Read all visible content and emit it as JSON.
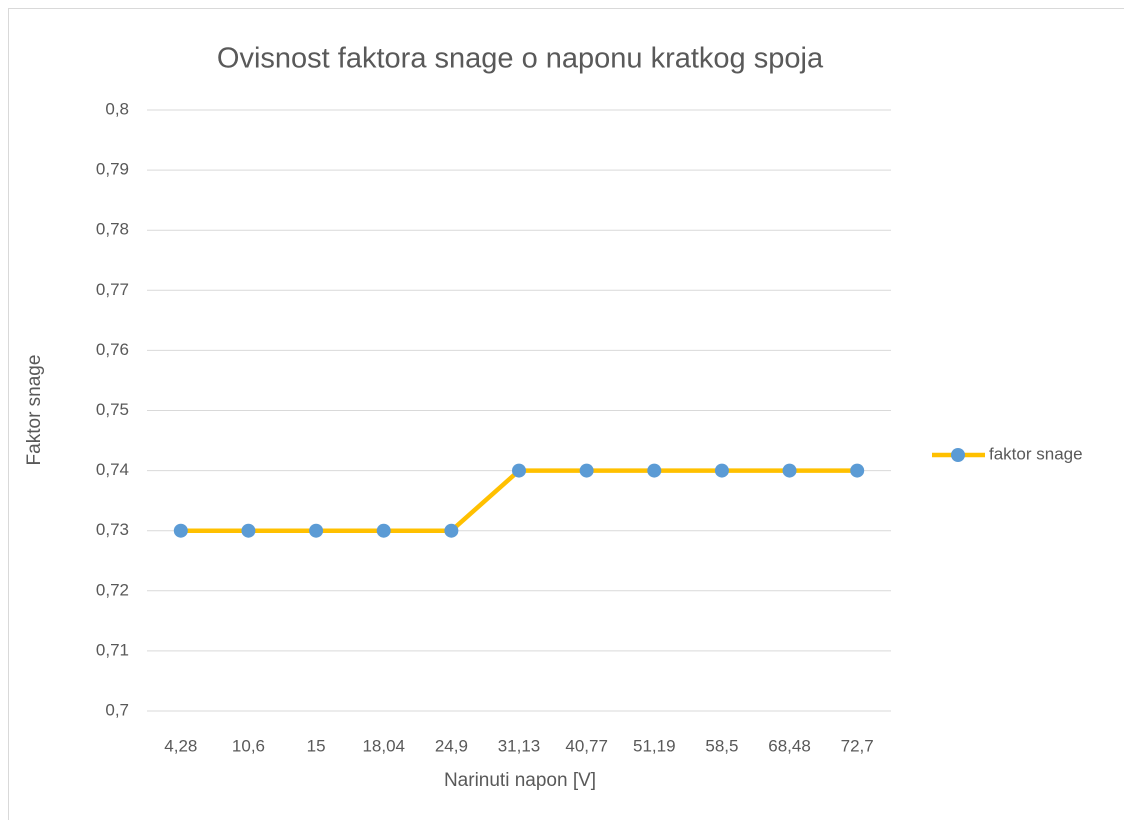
{
  "chart_data": {
    "type": "line",
    "title": "Ovisnost faktora snage o naponu kratkog spoja",
    "x_label": "Narinuti napon [V]",
    "y_label": "Faktor snage",
    "categories": [
      "4,28",
      "10,6",
      "15",
      "18,04",
      "24,9",
      "31,13",
      "40,77",
      "51,19",
      "58,5",
      "68,48",
      "72,7"
    ],
    "series": [
      {
        "name": "faktor snage",
        "color": "#FFC000",
        "marker_color": "#5B9BD5",
        "values": [
          0.73,
          0.73,
          0.73,
          0.73,
          0.73,
          0.74,
          0.74,
          0.74,
          0.74,
          0.74,
          0.74
        ]
      }
    ],
    "ylim": [
      0.7,
      0.8
    ],
    "yticks": [
      {
        "value": 0.7,
        "label": "0,7"
      },
      {
        "value": 0.71,
        "label": "0,71"
      },
      {
        "value": 0.72,
        "label": "0,72"
      },
      {
        "value": 0.73,
        "label": "0,73"
      },
      {
        "value": 0.74,
        "label": "0,74"
      },
      {
        "value": 0.75,
        "label": "0,75"
      },
      {
        "value": 0.76,
        "label": "0,76"
      },
      {
        "value": 0.77,
        "label": "0,77"
      },
      {
        "value": 0.78,
        "label": "0,78"
      },
      {
        "value": 0.79,
        "label": "0,79"
      },
      {
        "value": 0.8,
        "label": "0,8"
      }
    ],
    "grid": true,
    "legend": "right"
  }
}
